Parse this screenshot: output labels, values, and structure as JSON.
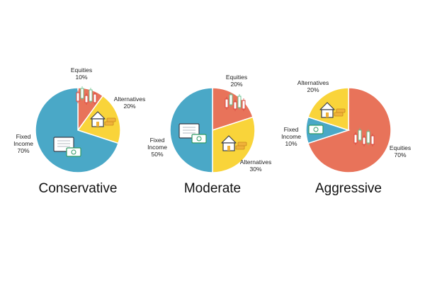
{
  "palette": {
    "equities": "#E8735A",
    "alternatives": "#F9D43A",
    "fixed_income": "#4AA8C7",
    "stroke": "#ffffff",
    "icon_dark": "#3b3f4a",
    "icon_light": "#ffffff",
    "money_green": "#2f9a64",
    "candle_green": "#6cc18f",
    "candle_red": "#d9473f",
    "gold": "#f0b23a"
  },
  "chart_data": [
    {
      "type": "pie",
      "title": "Conservative",
      "slices": [
        {
          "key": "equities",
          "name": "Equities",
          "value": 10,
          "label": "10%",
          "icon": "candlestick-chart-icon"
        },
        {
          "key": "alternatives",
          "name": "Alternatives",
          "value": 20,
          "label": "20%",
          "icon": "house-and-gold-icon"
        },
        {
          "key": "fixed_income",
          "name": "Fixed Income",
          "value": 70,
          "label": "70%",
          "icon": "bond-certificate-and-cash-icon"
        }
      ]
    },
    {
      "type": "pie",
      "title": "Moderate",
      "slices": [
        {
          "key": "equities",
          "name": "Equities",
          "value": 20,
          "label": "20%",
          "icon": "candlestick-chart-icon"
        },
        {
          "key": "alternatives",
          "name": "Alternatives",
          "value": 30,
          "label": "30%",
          "icon": "house-and-gold-icon"
        },
        {
          "key": "fixed_income",
          "name": "Fixed Income",
          "value": 50,
          "label": "50%",
          "icon": "bond-certificate-and-cash-icon"
        }
      ]
    },
    {
      "type": "pie",
      "title": "Aggressive",
      "slices": [
        {
          "key": "equities",
          "name": "Equities",
          "value": 70,
          "label": "70%",
          "icon": "candlestick-chart-icon"
        },
        {
          "key": "fixed_income",
          "name": "Fixed Income",
          "value": 10,
          "label": "10%",
          "icon": "cash-icon"
        },
        {
          "key": "alternatives",
          "name": "Alternatives",
          "value": 20,
          "label": "20%",
          "icon": "house-and-gold-icon"
        }
      ]
    }
  ]
}
